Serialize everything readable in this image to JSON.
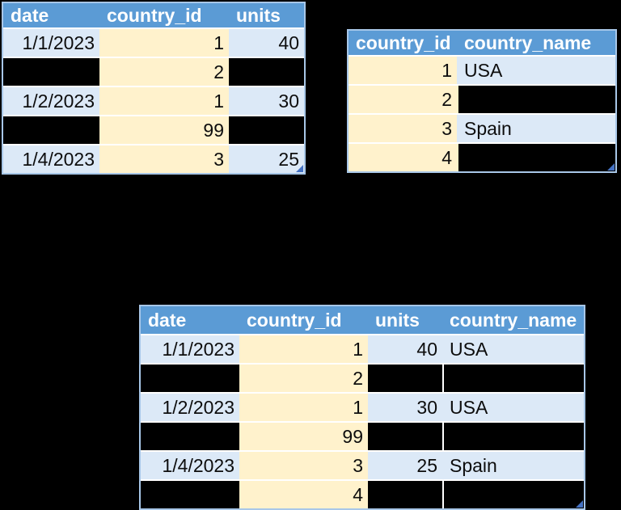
{
  "colors": {
    "background": "#000000",
    "header_bg": "#5B9BD5",
    "header_text": "#FFFFFF",
    "row_bg": "#DCE9F7",
    "key_column_bg": "#FFF2CC",
    "missing_cell_bg": "#000000",
    "table_border": "#A8C7E8",
    "row_separator": "#FFFFFF",
    "missing_divider": "#FFFFFF",
    "missing_divider_yellow": "#FAF0C8",
    "resize_handle": "#4472C4"
  },
  "tables": {
    "sales": {
      "headers": [
        "date",
        "country_id",
        "units"
      ],
      "rows": [
        {
          "date": "1/1/2023",
          "country_id": "1",
          "units": "40"
        },
        {
          "date": "",
          "country_id": "2",
          "units": ""
        },
        {
          "date": "1/2/2023",
          "country_id": "1",
          "units": "30"
        },
        {
          "date": "",
          "country_id": "99",
          "units": ""
        },
        {
          "date": "1/4/2023",
          "country_id": "3",
          "units": "25"
        }
      ]
    },
    "countries": {
      "headers": [
        "country_id",
        "country_name"
      ],
      "rows": [
        {
          "country_id": "1",
          "country_name": "USA"
        },
        {
          "country_id": "2",
          "country_name": ""
        },
        {
          "country_id": "3",
          "country_name": "Spain"
        },
        {
          "country_id": "4",
          "country_name": ""
        }
      ]
    },
    "merged": {
      "headers": [
        "date",
        "country_id",
        "units",
        "country_name"
      ],
      "rows": [
        {
          "date": "1/1/2023",
          "country_id": "1",
          "units": "40",
          "country_name": "USA"
        },
        {
          "date": "",
          "country_id": "2",
          "units": "",
          "country_name": ""
        },
        {
          "date": "1/2/2023",
          "country_id": "1",
          "units": "30",
          "country_name": "USA"
        },
        {
          "date": "",
          "country_id": "99",
          "units": "",
          "country_name": ""
        },
        {
          "date": "1/4/2023",
          "country_id": "3",
          "units": "25",
          "country_name": "Spain"
        },
        {
          "date": "",
          "country_id": "4",
          "units": "",
          "country_name": ""
        }
      ]
    }
  }
}
